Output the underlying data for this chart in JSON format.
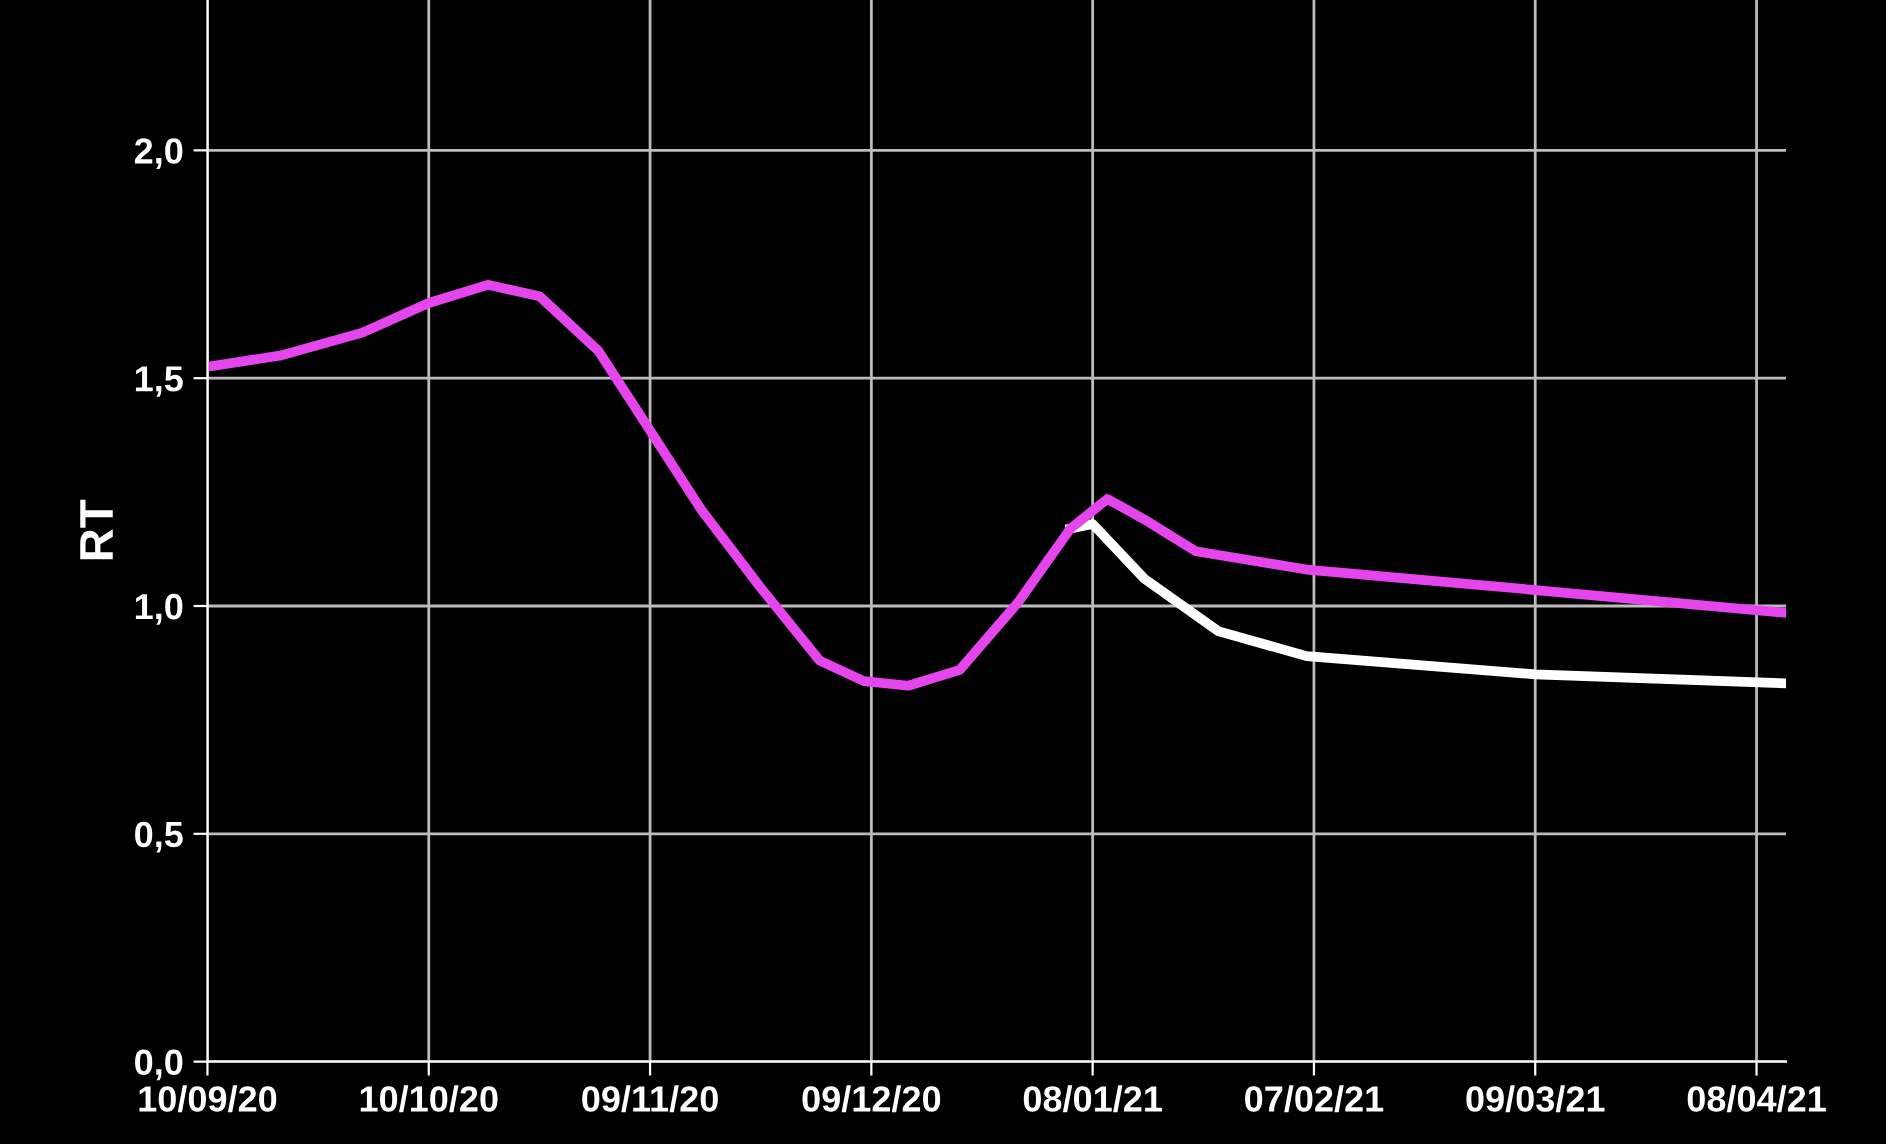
{
  "chart_data": {
    "type": "line",
    "ylabel": "RT",
    "series": [
      {
        "color": "#ffffff",
        "x": [
          "2021-01-05",
          "2021-01-08",
          "2021-01-15",
          "2021-01-25",
          "2021-02-06",
          "2021-03-09",
          "2021-04-12"
        ],
        "values": [
          1.17,
          1.18,
          1.06,
          0.945,
          0.89,
          0.85,
          0.83
        ]
      },
      {
        "color": "#e445ec",
        "x": [
          "2020-09-10",
          "2020-09-20",
          "2020-10-01",
          "2020-10-10",
          "2020-10-18",
          "2020-10-25",
          "2020-11-02",
          "2020-11-08",
          "2020-11-16",
          "2020-11-24",
          "2020-12-02",
          "2020-12-08",
          "2020-12-14",
          "2020-12-21",
          "2020-12-29",
          "2021-01-05",
          "2021-01-10",
          "2021-01-15",
          "2021-01-22",
          "2021-02-06",
          "2021-03-09",
          "2021-04-12"
        ],
        "values": [
          1.525,
          1.55,
          1.6,
          1.665,
          1.705,
          1.68,
          1.56,
          1.41,
          1.21,
          1.04,
          0.88,
          0.835,
          0.825,
          0.86,
          1.01,
          1.17,
          1.235,
          1.19,
          1.12,
          1.08,
          1.035,
          0.985
        ]
      }
    ],
    "xlim": [
      "2020-09-10",
      "2021-04-12"
    ],
    "xticks": [
      {
        "value": "2020-09-10",
        "label": "10/09/20"
      },
      {
        "value": "2020-10-10",
        "label": "10/10/20"
      },
      {
        "value": "2020-11-09",
        "label": "09/11/20"
      },
      {
        "value": "2020-12-09",
        "label": "09/12/20"
      },
      {
        "value": "2021-01-08",
        "label": "08/01/21"
      },
      {
        "value": "2021-02-07",
        "label": "07/02/21"
      },
      {
        "value": "2021-03-09",
        "label": "09/03/21"
      },
      {
        "value": "2021-04-08",
        "label": "08/04/21"
      }
    ],
    "ylim": [
      0,
      2.33
    ],
    "yticks": [
      {
        "value": 0,
        "label": "0,0"
      },
      {
        "value": 0.5,
        "label": "0,5"
      },
      {
        "value": 1.0,
        "label": "1,0"
      },
      {
        "value": 1.5,
        "label": "1,5"
      },
      {
        "value": 2.0,
        "label": "2,0"
      }
    ],
    "grid": true,
    "line_style": "solid"
  }
}
